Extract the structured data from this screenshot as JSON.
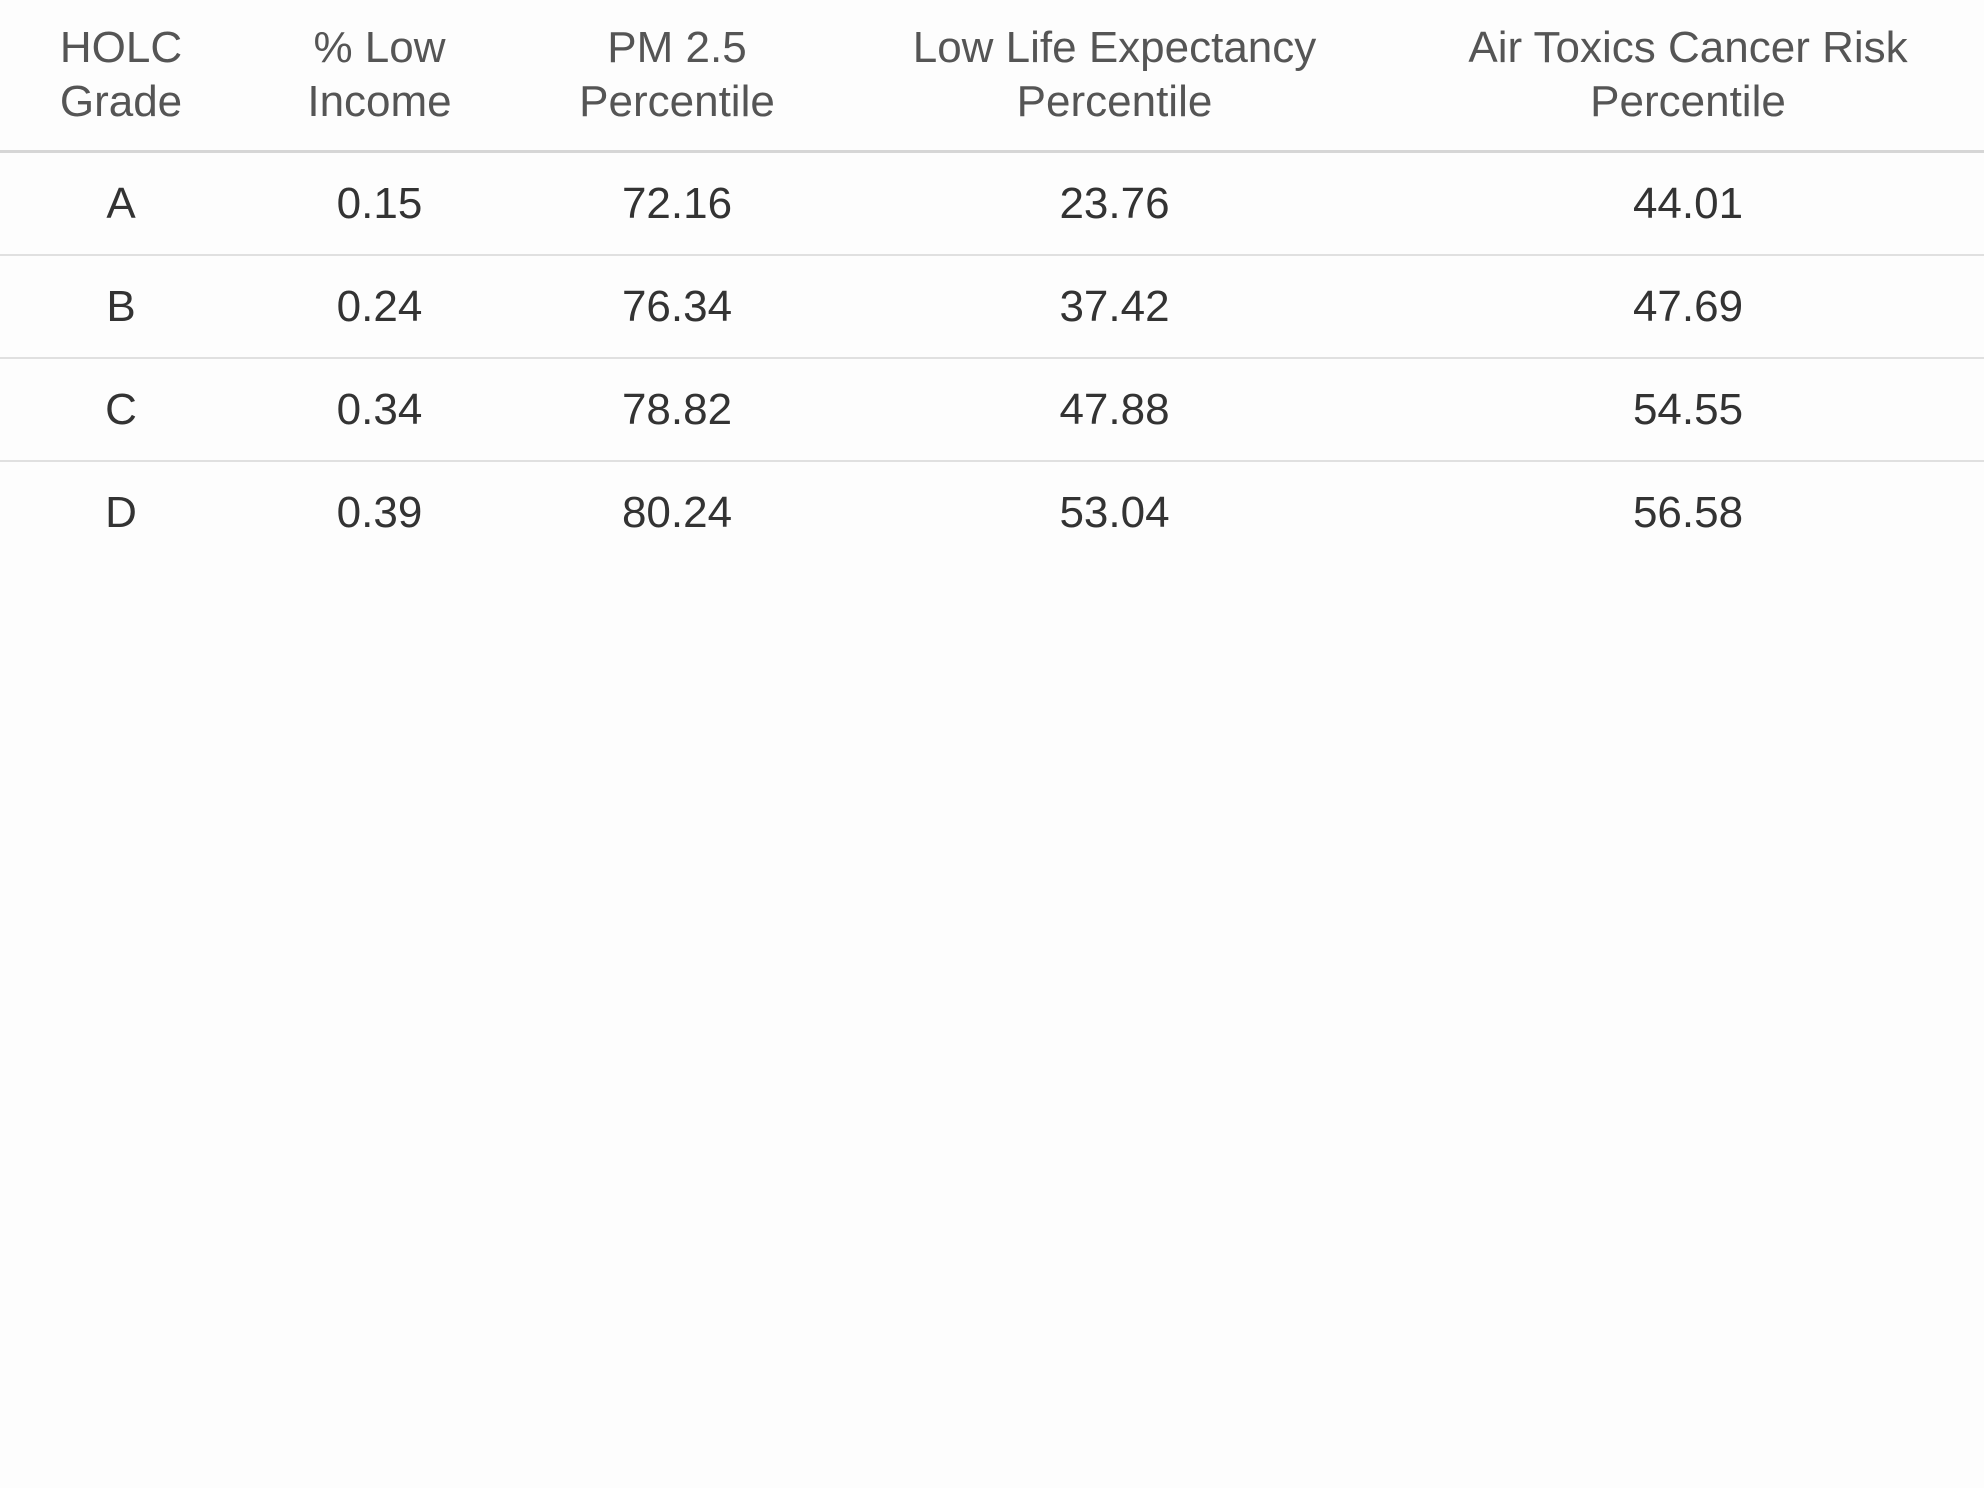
{
  "chart_data": {
    "type": "table",
    "columns": [
      {
        "line1": "HOLC",
        "line2": "Grade"
      },
      {
        "line1": "% Low",
        "line2": "Income"
      },
      {
        "line1": "PM 2.5",
        "line2": "Percentile"
      },
      {
        "line1": "Low Life Expectancy",
        "line2": "Percentile"
      },
      {
        "line1": "Air Toxics Cancer Risk",
        "line2": "Percentile"
      }
    ],
    "rows": [
      [
        "A",
        "0.15",
        "72.16",
        "23.76",
        "44.01"
      ],
      [
        "B",
        "0.24",
        "76.34",
        "37.42",
        "47.69"
      ],
      [
        "C",
        "0.34",
        "78.82",
        "47.88",
        "54.55"
      ],
      [
        "D",
        "0.39",
        "80.24",
        "53.04",
        "56.58"
      ]
    ]
  }
}
